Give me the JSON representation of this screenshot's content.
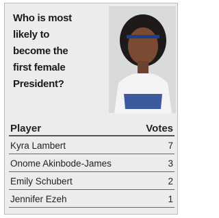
{
  "question": "Who is most likely to become the first female President?",
  "table": {
    "header": [
      "Player",
      "Votes"
    ],
    "rows": [
      [
        "Kyra Lambert",
        7
      ],
      [
        "Onome Akinbode-James",
        3
      ],
      [
        "Emily Schubert",
        2
      ],
      [
        "Jennifer Ezeh",
        1
      ]
    ]
  }
}
